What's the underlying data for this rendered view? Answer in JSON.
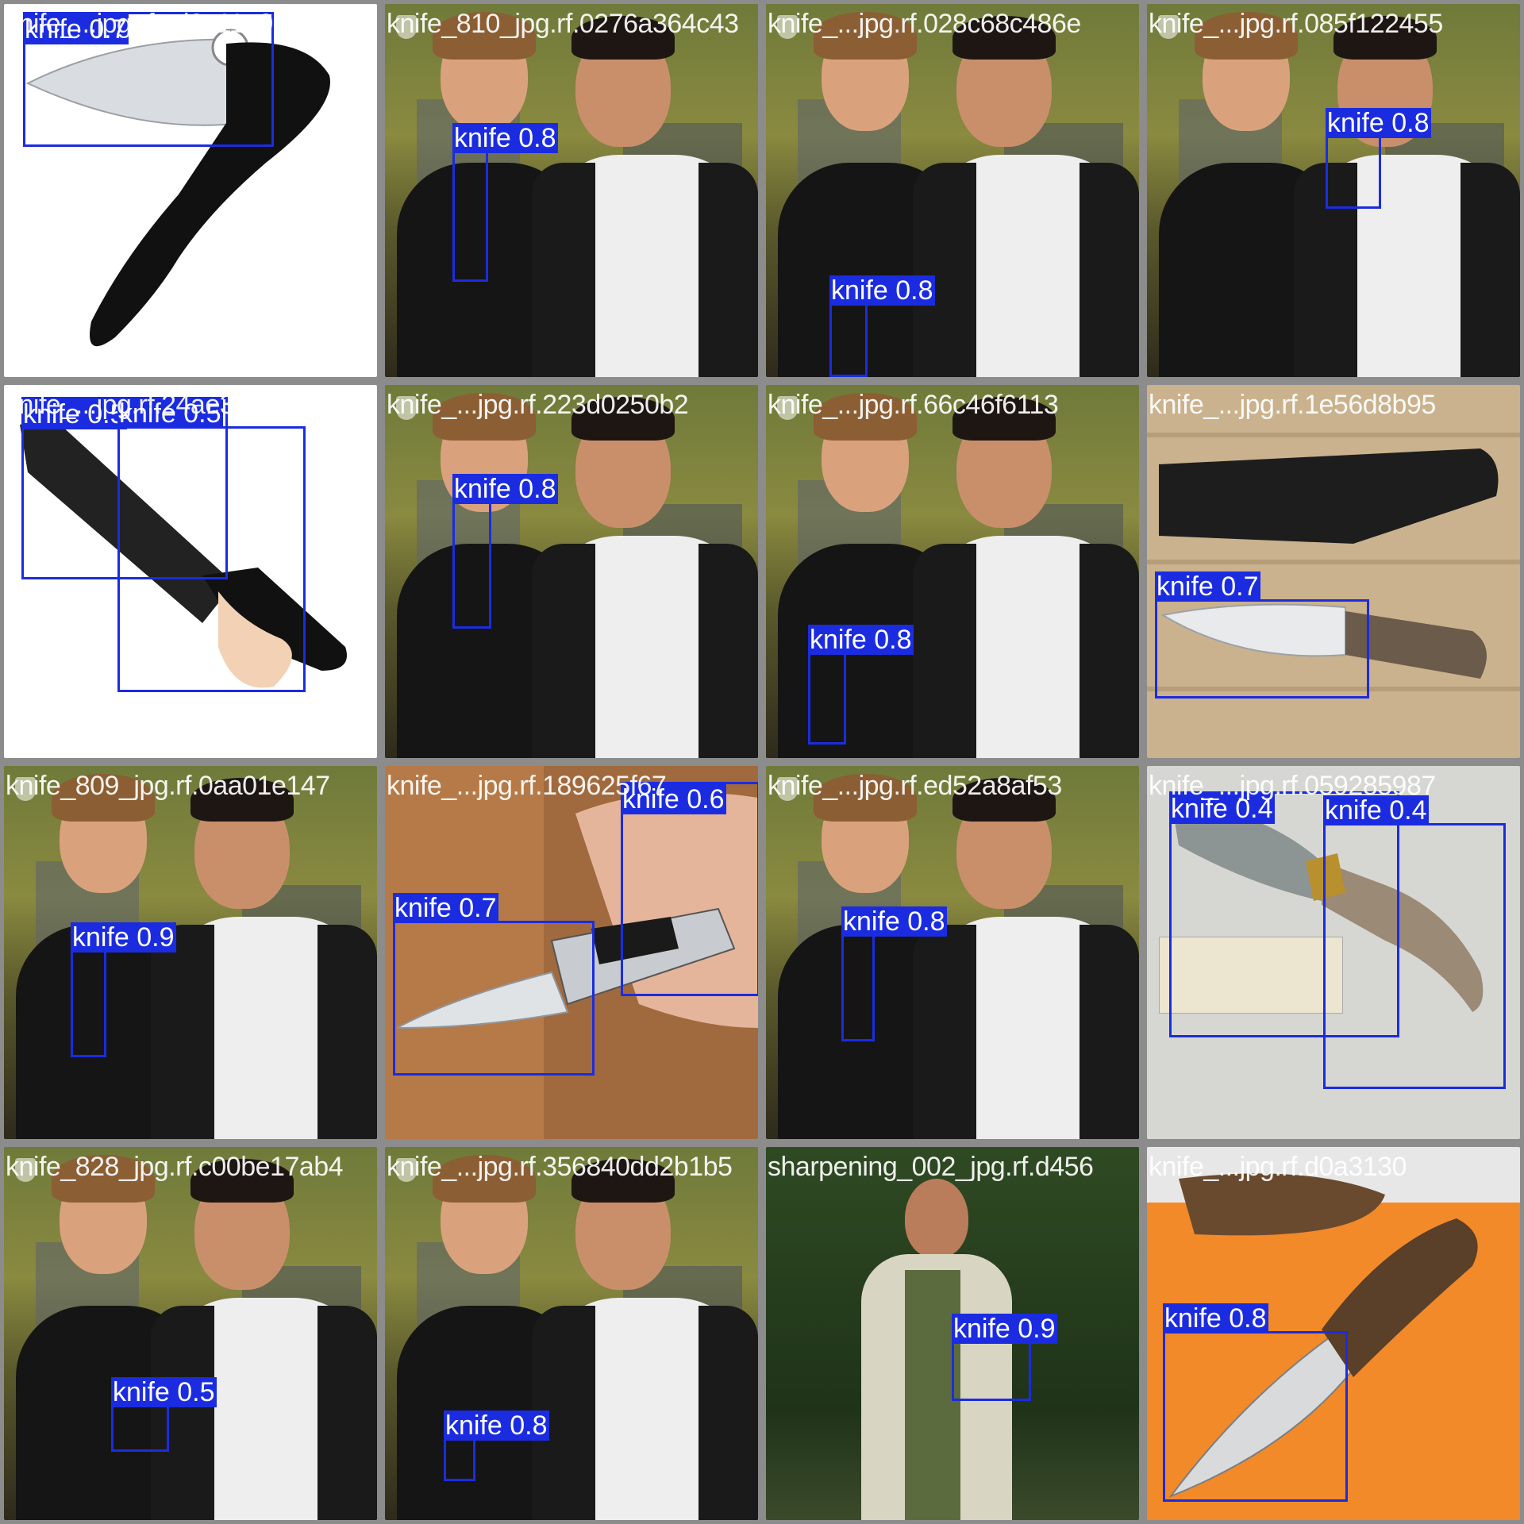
{
  "colors": {
    "background": "#8c8c8c",
    "box": "#1b2ce0",
    "box_label_text": "#ffffff",
    "tile_name_text": "#ffffff"
  },
  "tiles": [
    {
      "id": 0,
      "scene": "knife-product-white",
      "name": "knife_...jpg.rf.cd2c11e921",
      "detections": [
        {
          "label": "knife 0.7"
        }
      ]
    },
    {
      "id": 1,
      "scene": "outdoor-duo",
      "name": "knife_810_jpg.rf.0276a364c43",
      "detections": [
        {
          "label": "knife 0.8"
        }
      ]
    },
    {
      "id": 2,
      "scene": "outdoor-duo",
      "name": "knife_...jpg.rf.028c68c486e",
      "detections": [
        {
          "label": "knife 0.8"
        }
      ]
    },
    {
      "id": 3,
      "scene": "outdoor-duo",
      "name": "knife_...jpg.rf.085f122455",
      "detections": [
        {
          "label": "knife 0.8"
        }
      ]
    },
    {
      "id": 4,
      "scene": "tactical-knife-white",
      "name": "knife_...jpg.rf.24ae3e9e9e",
      "detections": [
        {
          "label": "knife 0.5"
        },
        {
          "label": "knife 0.5"
        }
      ]
    },
    {
      "id": 5,
      "scene": "outdoor-duo",
      "name": "knife_...jpg.rf.223d0250b2",
      "detections": [
        {
          "label": "knife 0.8"
        }
      ]
    },
    {
      "id": 6,
      "scene": "outdoor-duo",
      "name": "knife_...jpg.rf.66c46f6113",
      "detections": [
        {
          "label": "knife 0.8"
        }
      ]
    },
    {
      "id": 7,
      "scene": "knife-sheath-wood",
      "name": "knife_...jpg.rf.1e56d8b95",
      "detections": [
        {
          "label": "knife 0.7"
        }
      ]
    },
    {
      "id": 8,
      "scene": "outdoor-duo",
      "name": "knife_809_jpg.rf.0aa01e147",
      "detections": [
        {
          "label": "knife 0.9"
        }
      ]
    },
    {
      "id": 9,
      "scene": "butterfly-knife",
      "name": "knife_...jpg.rf.189625f67",
      "detections": [
        {
          "label": "knife 0.7"
        },
        {
          "label": "knife 0.6"
        }
      ]
    },
    {
      "id": 10,
      "scene": "outdoor-duo",
      "name": "knife_...jpg.rf.ed52a8af53",
      "detections": [
        {
          "label": "knife 0.8"
        }
      ]
    },
    {
      "id": 11,
      "scene": "folding-knife-certificate",
      "name": "knife_...jpg.rf.059285987",
      "detections": [
        {
          "label": "knife 0.4"
        },
        {
          "label": "knife 0.4"
        }
      ]
    },
    {
      "id": 12,
      "scene": "outdoor-duo",
      "name": "knife_828_jpg.rf.c00be17ab4",
      "detections": [
        {
          "label": "knife 0.5"
        }
      ]
    },
    {
      "id": 13,
      "scene": "outdoor-duo",
      "name": "knife_...jpg.rf.356840dd2b1b5",
      "detections": [
        {
          "label": "knife 0.8"
        }
      ]
    },
    {
      "id": 14,
      "scene": "forest-man",
      "name": "sharpening_002_jpg.rf.d456",
      "detections": [
        {
          "label": "knife 0.9"
        }
      ]
    },
    {
      "id": 15,
      "scene": "ganzo-orange",
      "name": "knife_...jpg.rf.d0a3130",
      "detections": [
        {
          "label": "knife 0.8"
        }
      ]
    }
  ]
}
